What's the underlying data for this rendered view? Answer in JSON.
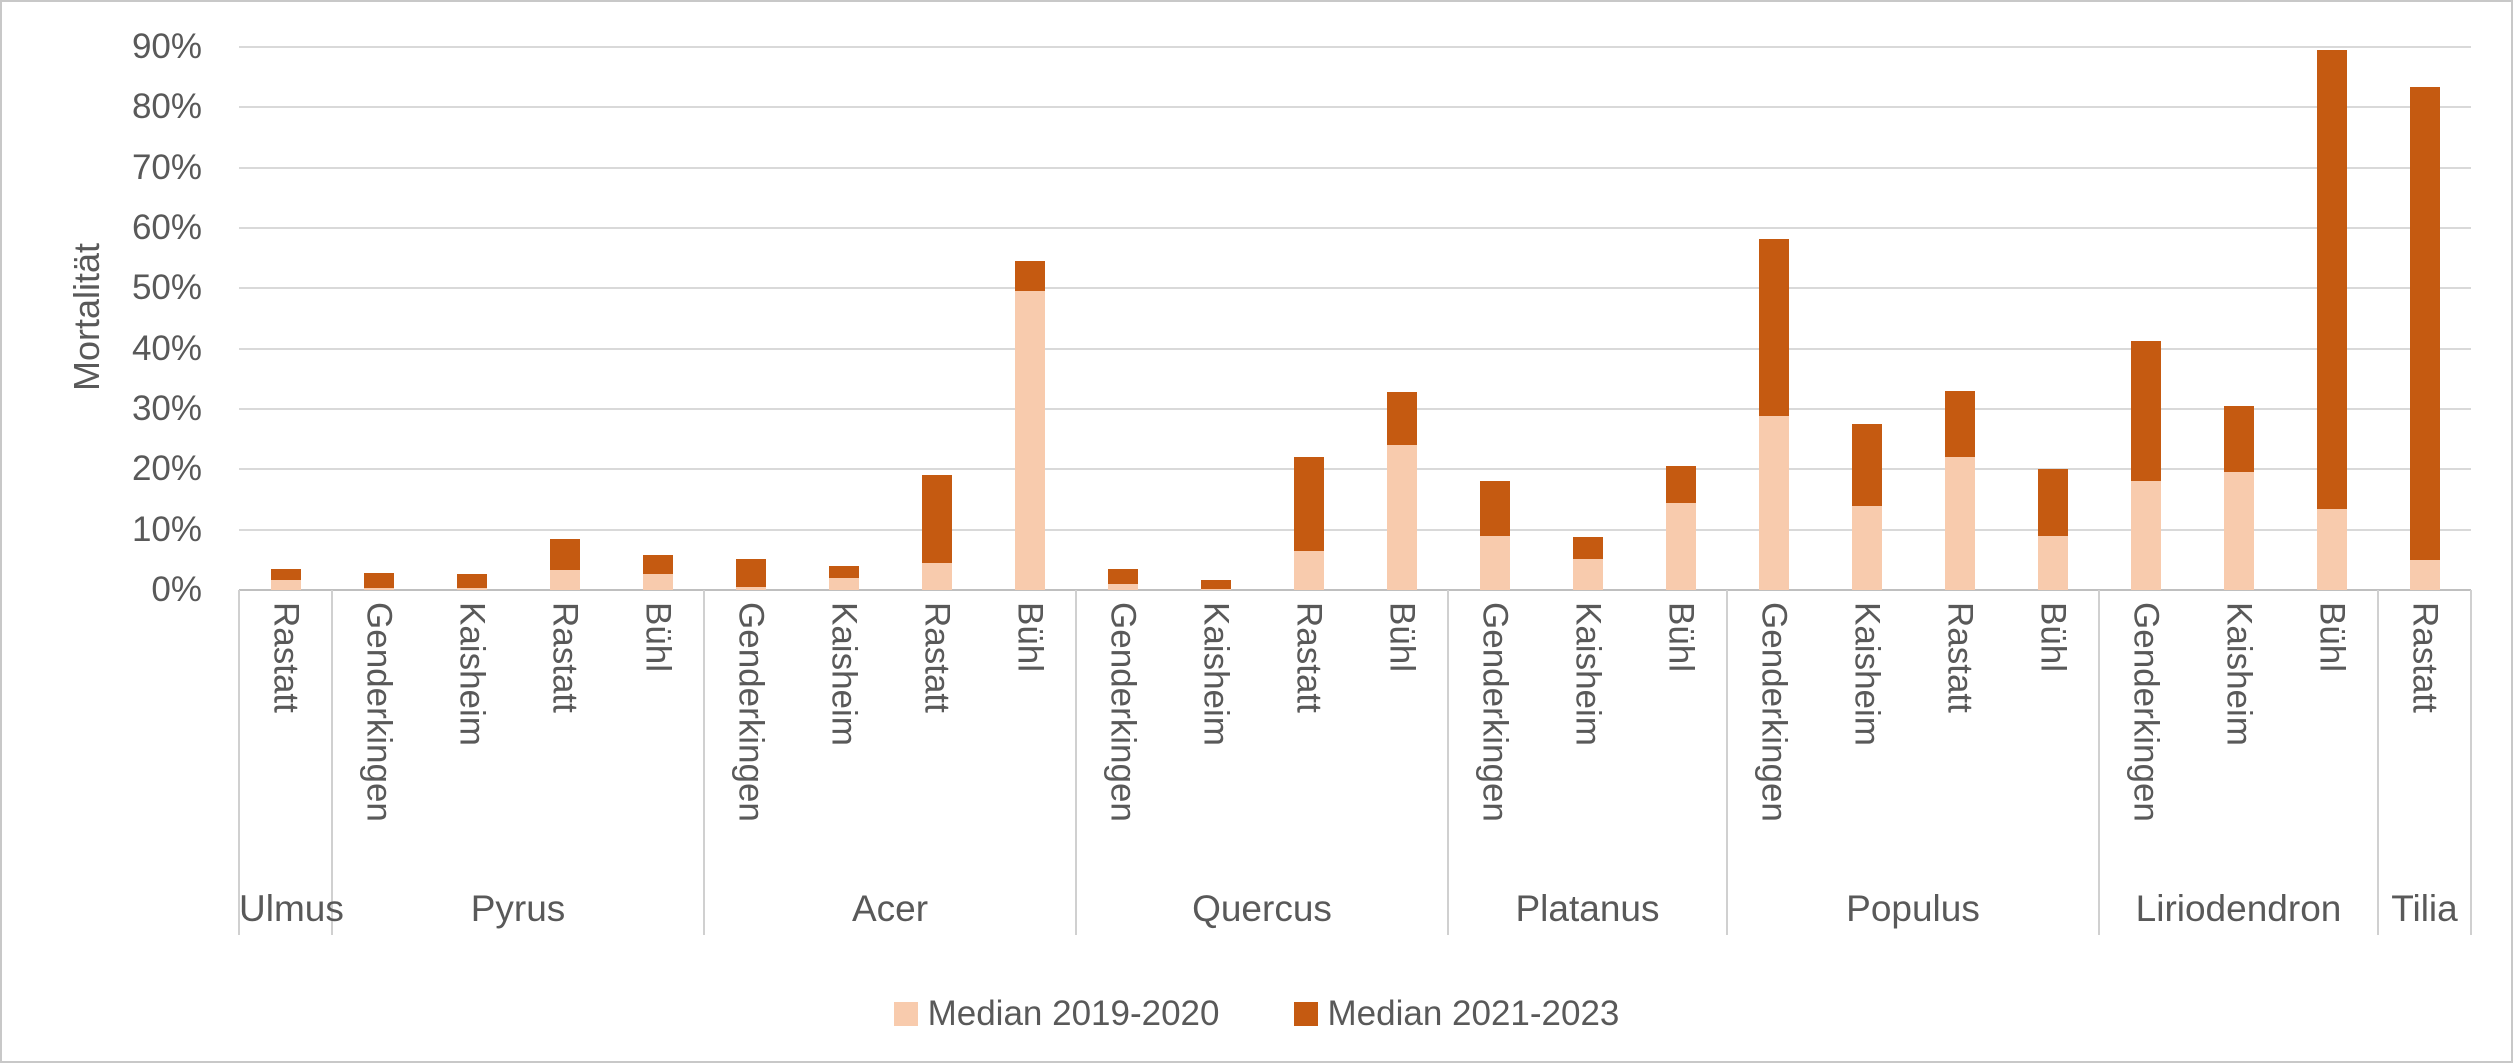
{
  "chart_data": {
    "type": "bar",
    "stacked": true,
    "title": "",
    "ylabel": "Mortalität",
    "xlabel": "",
    "ylim_percent": [
      0,
      90
    ],
    "grid": true,
    "legend_position": "bottom",
    "y_tick_labels": [
      "0%",
      "10%",
      "20%",
      "30%",
      "40%",
      "50%",
      "60%",
      "70%",
      "80%",
      "90%"
    ],
    "series": [
      {
        "name": "Median 2019-2020",
        "color": "#F8CBAD"
      },
      {
        "name": "Median 2021-2023",
        "color": "#C55A11"
      }
    ],
    "groups": [
      {
        "genus": "Ulmus",
        "bars": [
          {
            "site": "Rastatt",
            "values_percent": [
              1.7,
              1.8
            ]
          }
        ]
      },
      {
        "genus": "Pyrus",
        "bars": [
          {
            "site": "Genderkingen",
            "values_percent": [
              0.3,
              2.5
            ]
          },
          {
            "site": "Kaisheim",
            "values_percent": [
              0.4,
              2.2
            ]
          },
          {
            "site": "Rastatt",
            "values_percent": [
              3.3,
              5.2
            ]
          },
          {
            "site": "Bühl",
            "values_percent": [
              2.7,
              3.1
            ]
          }
        ]
      },
      {
        "genus": "Acer",
        "bars": [
          {
            "site": "Genderkingen",
            "values_percent": [
              0.5,
              4.7
            ]
          },
          {
            "site": "Kaisheim",
            "values_percent": [
              2.0,
              2.0
            ]
          },
          {
            "site": "Rastatt",
            "values_percent": [
              4.5,
              14.5
            ]
          },
          {
            "site": "Bühl",
            "values_percent": [
              49.5,
              5.0
            ]
          }
        ]
      },
      {
        "genus": "Quercus",
        "bars": [
          {
            "site": "Genderkingen",
            "values_percent": [
              1.0,
              2.4
            ]
          },
          {
            "site": "Kaisheim",
            "values_percent": [
              0.2,
              1.5
            ]
          },
          {
            "site": "Rastatt",
            "values_percent": [
              6.5,
              15.5
            ]
          },
          {
            "site": "Bühl",
            "values_percent": [
              24.0,
              8.8
            ]
          }
        ]
      },
      {
        "genus": "Platanus",
        "bars": [
          {
            "site": "Genderkingen",
            "values_percent": [
              9.0,
              9.0
            ]
          },
          {
            "site": "Kaisheim",
            "values_percent": [
              5.1,
              3.7
            ]
          },
          {
            "site": "Bühl",
            "values_percent": [
              14.5,
              6.0
            ]
          }
        ]
      },
      {
        "genus": "Populus",
        "bars": [
          {
            "site": "Genderkingen",
            "values_percent": [
              28.8,
              29.4
            ]
          },
          {
            "site": "Kaisheim",
            "values_percent": [
              14.0,
              13.5
            ]
          },
          {
            "site": "Rastatt",
            "values_percent": [
              22.0,
              11.0
            ]
          },
          {
            "site": "Bühl",
            "values_percent": [
              9.0,
              11.0
            ]
          }
        ]
      },
      {
        "genus": "Liriodendron",
        "bars": [
          {
            "site": "Genderkingen",
            "values_percent": [
              18.0,
              23.3
            ]
          },
          {
            "site": "Kaisheim",
            "values_percent": [
              19.5,
              11.0
            ]
          },
          {
            "site": "Bühl",
            "values_percent": [
              13.5,
              76.0
            ]
          }
        ]
      },
      {
        "genus": "Tilia",
        "bars": [
          {
            "site": "Rastatt",
            "values_percent": [
              5.0,
              78.3
            ]
          }
        ]
      }
    ],
    "colors": {
      "text": "#595959",
      "gridline": "#D9D9D9",
      "axis_line": "#BFBFBF",
      "divider": "#D0D0D0",
      "background": "#FFFFFF",
      "frame_border": "#C8C8C8"
    }
  }
}
